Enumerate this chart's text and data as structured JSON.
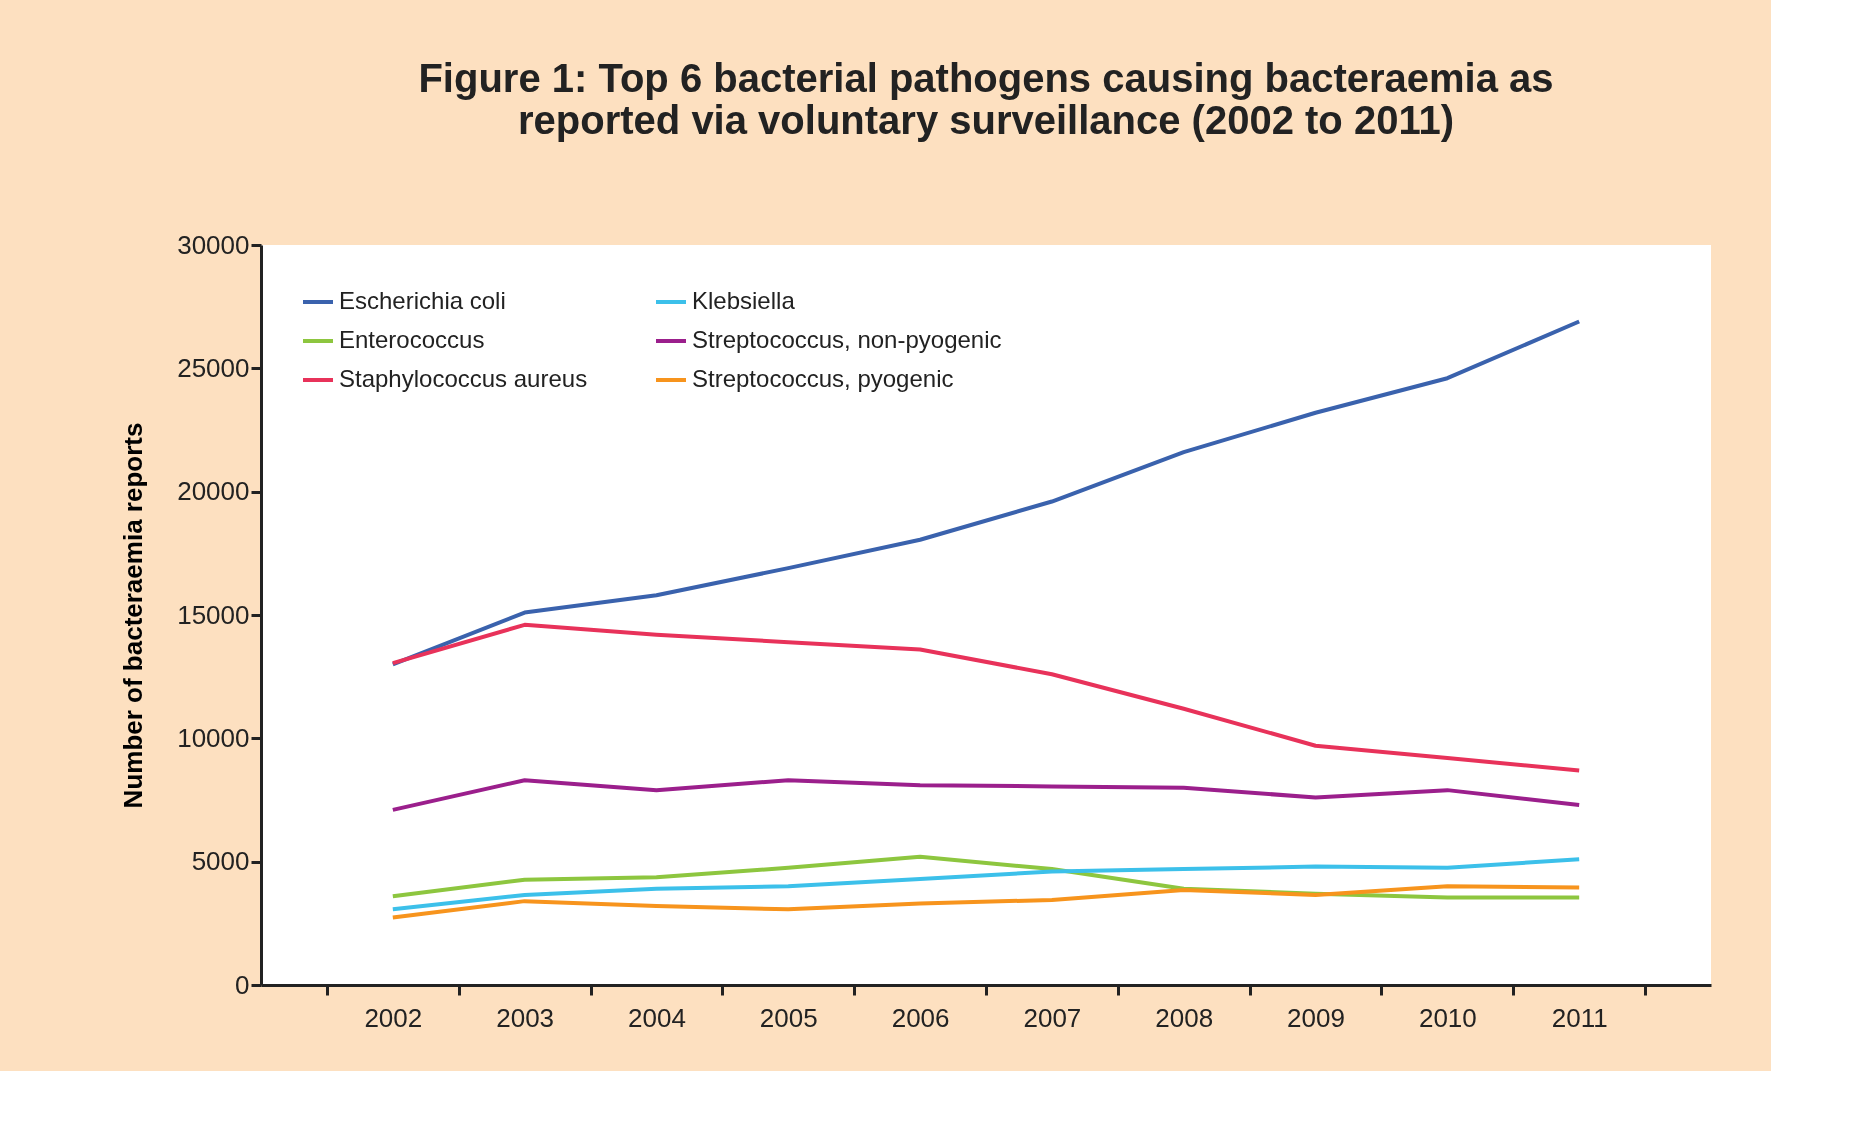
{
  "chart_data": {
    "type": "line",
    "title": [
      "Figure 1: Top 6 bacterial pathogens causing bacteraemia as",
      "reported via voluntary surveillance (2002 to 2011)"
    ],
    "ylabel": "Number of bacteraemia reports",
    "categories": [
      "2002",
      "2003",
      "2004",
      "2005",
      "2006",
      "2007",
      "2008",
      "2009",
      "2010",
      "2011"
    ],
    "ylim": [
      0,
      30000
    ],
    "yticks": [
      0,
      5000,
      10000,
      15000,
      20000,
      25000,
      30000
    ],
    "grid": false,
    "legend": "top left",
    "marker": "none",
    "line_style": "solid",
    "series": [
      {
        "name": "Escherichia coli",
        "color": "#3a62ad",
        "values": [
          13000,
          15100,
          15800,
          16900,
          18050,
          19600,
          21600,
          23200,
          24600,
          26900
        ]
      },
      {
        "name": "Staphylococcus aureus",
        "color": "#e8325a",
        "values": [
          13050,
          14600,
          14200,
          13900,
          13600,
          12600,
          11200,
          9700,
          9200,
          8700
        ]
      },
      {
        "name": "Streptococcus, non-pyogenic",
        "color": "#9b1f8c",
        "values": [
          7100,
          8300,
          7900,
          8300,
          8100,
          8050,
          8000,
          7600,
          7900,
          7300
        ]
      },
      {
        "name": "Enterococcus",
        "color": "#8dc63f",
        "values": [
          3600,
          4270,
          4370,
          4750,
          5200,
          4700,
          3900,
          3700,
          3550,
          3550
        ]
      },
      {
        "name": "Klebsiella",
        "color": "#3cc0ea",
        "values": [
          3070,
          3650,
          3900,
          4000,
          4300,
          4600,
          4700,
          4800,
          4750,
          5100
        ]
      },
      {
        "name": "Streptococcus, pyogenic",
        "color": "#f7941d",
        "values": [
          2740,
          3400,
          3200,
          3070,
          3300,
          3450,
          3850,
          3650,
          4000,
          3950
        ]
      }
    ]
  }
}
